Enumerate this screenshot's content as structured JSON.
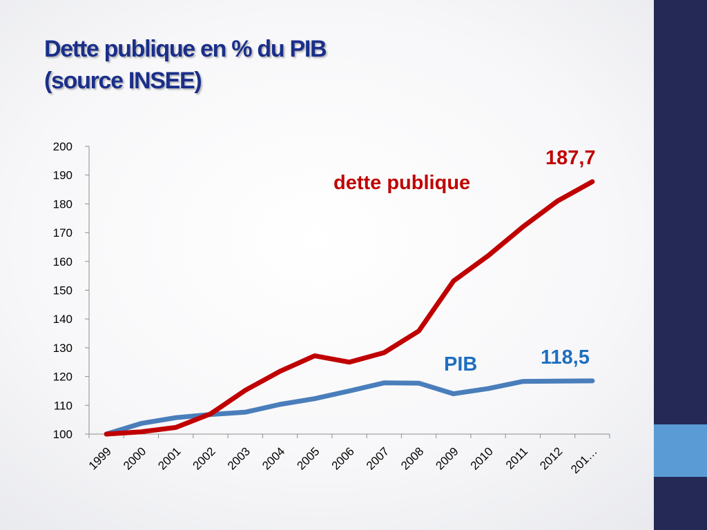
{
  "slide": {
    "title_line1": "Dette publique en % du PIB",
    "title_line2": "(source INSEE)",
    "accent_color": "#242955",
    "highlight_color": "#5b9bd5"
  },
  "chart_data": {
    "type": "line",
    "categories": [
      "1999",
      "2000",
      "2001",
      "2002",
      "2003",
      "2004",
      "2005",
      "2006",
      "2007",
      "2008",
      "2009",
      "2010",
      "2011",
      "2012",
      "201…"
    ],
    "series": [
      {
        "name": "dette publique",
        "color": "#c00000",
        "values": [
          100,
          100.8,
          102.3,
          107,
          115.2,
          121.8,
          127.2,
          125,
          128.3,
          135.8,
          153.2,
          162,
          172,
          181,
          187.7
        ]
      },
      {
        "name": "PIB",
        "color": "#4a7ebb",
        "values": [
          100,
          103.7,
          105.7,
          106.8,
          107.6,
          110.3,
          112.3,
          115,
          117.8,
          117.7,
          114,
          115.8,
          118.3,
          118.4,
          118.5
        ]
      }
    ],
    "yticks": [
      "100",
      "110",
      "120",
      "130",
      "140",
      "150",
      "160",
      "170",
      "180",
      "190",
      "200"
    ],
    "ylim": [
      100,
      200
    ],
    "grid": false,
    "legend": "none",
    "annotations": {
      "debt_label": "dette publique",
      "debt_value": "187,7",
      "pib_label": "PIB",
      "pib_value": "118,5"
    }
  }
}
